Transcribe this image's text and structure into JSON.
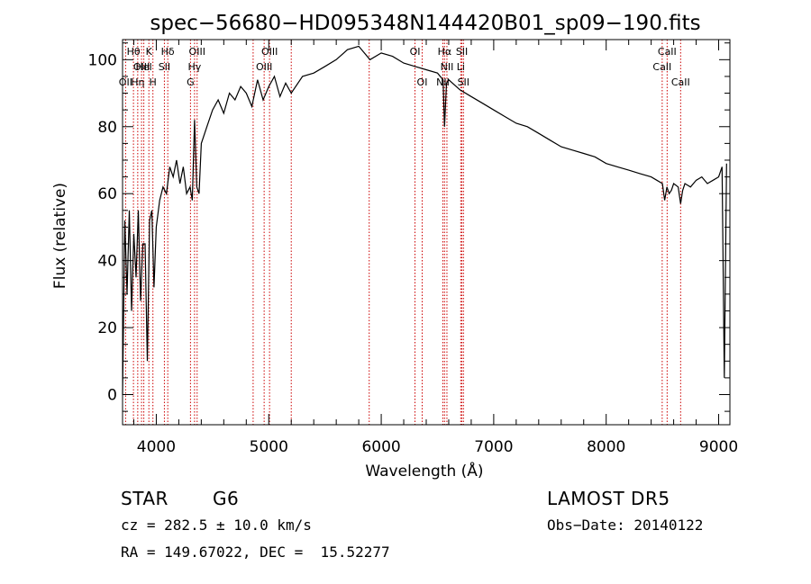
{
  "chart_data": {
    "type": "line",
    "title": "spec−56680−HD095348N144420B01_sp09−190.fits",
    "xlabel": "Wavelength (Å)",
    "ylabel": "Flux (relative)",
    "xlim": [
      3700,
      9100
    ],
    "ylim": [
      -9,
      106
    ],
    "xticks": [
      4000,
      5000,
      6000,
      7000,
      8000,
      9000
    ],
    "yticks": [
      0,
      20,
      40,
      60,
      80,
      100
    ],
    "grid": false,
    "line_color": "#000000",
    "marker_color": "#cc0000",
    "series": [
      {
        "x": [
          3700,
          3720,
          3740,
          3760,
          3780,
          3800,
          3820,
          3840,
          3860,
          3880,
          3900,
          3920,
          3940,
          3960,
          3980,
          4000,
          4030,
          4060,
          4090,
          4120,
          4150,
          4180,
          4210,
          4240,
          4270,
          4300,
          4320,
          4340,
          4360,
          4380,
          4400,
          4450,
          4500,
          4550,
          4600,
          4650,
          4700,
          4750,
          4800,
          4850,
          4900,
          4950,
          5000,
          5050,
          5100,
          5150,
          5200,
          5300,
          5400,
          5500,
          5600,
          5700,
          5800,
          5900,
          6000,
          6100,
          6200,
          6300,
          6400,
          6500,
          6550,
          6563,
          6580,
          6600,
          6700,
          6800,
          6900,
          7000,
          7100,
          7200,
          7300,
          7400,
          7500,
          7600,
          7700,
          7800,
          7900,
          8000,
          8100,
          8200,
          8300,
          8400,
          8450,
          8500,
          8520,
          8540,
          8560,
          8580,
          8600,
          8640,
          8662,
          8680,
          8700,
          8750,
          8800,
          8850,
          8900,
          8950,
          9000,
          9030,
          9050,
          9070
        ],
        "y": [
          0,
          52,
          30,
          55,
          25,
          48,
          35,
          55,
          28,
          45,
          45,
          10,
          52,
          55,
          32,
          50,
          58,
          62,
          60,
          68,
          65,
          70,
          63,
          68,
          60,
          62,
          58,
          82,
          62,
          60,
          75,
          80,
          85,
          88,
          84,
          90,
          88,
          92,
          90,
          86,
          94,
          88,
          92,
          95,
          89,
          93,
          90,
          95,
          96,
          98,
          100,
          103,
          104,
          100,
          102,
          101,
          99,
          98,
          97,
          96,
          94,
          80,
          93,
          94,
          91,
          89,
          87,
          85,
          83,
          81,
          80,
          78,
          76,
          74,
          73,
          72,
          71,
          69,
          68,
          67,
          66,
          65,
          64,
          63,
          58,
          62,
          60,
          61,
          63,
          62,
          57,
          61,
          63,
          62,
          64,
          65,
          63,
          64,
          65,
          68,
          5,
          69
        ]
      }
    ],
    "line_markers": [
      {
        "x": 3727,
        "label": "OII",
        "row": 3
      },
      {
        "x": 3797,
        "label": "Hθ",
        "row": 1
      },
      {
        "x": 3835,
        "label": "Hη",
        "row": 3
      },
      {
        "x": 3869,
        "label": "OIII",
        "row": 2
      },
      {
        "x": 3889,
        "label": "HeI",
        "row": 2
      },
      {
        "x": 3934,
        "label": "K",
        "row": 1
      },
      {
        "x": 3970,
        "label": "H",
        "row": 3
      },
      {
        "x": 4072,
        "label": "SII",
        "row": 2
      },
      {
        "x": 4102,
        "label": "Hδ",
        "row": 1
      },
      {
        "x": 4304,
        "label": "G",
        "row": 3
      },
      {
        "x": 4340,
        "label": "Hγ",
        "row": 2
      },
      {
        "x": 4363,
        "label": "OIII",
        "row": 1
      },
      {
        "x": 4861,
        "label": "",
        "row": 0
      },
      {
        "x": 4959,
        "label": "OIII",
        "row": 2
      },
      {
        "x": 5007,
        "label": "OIII",
        "row": 1
      },
      {
        "x": 5200,
        "label": "",
        "row": 0
      },
      {
        "x": 5893,
        "label": "",
        "row": 0
      },
      {
        "x": 6300,
        "label": "OI",
        "row": 1
      },
      {
        "x": 6364,
        "label": "OI",
        "row": 3
      },
      {
        "x": 6548,
        "label": "NII",
        "row": 3
      },
      {
        "x": 6563,
        "label": "Hα",
        "row": 1
      },
      {
        "x": 6584,
        "label": "NII",
        "row": 2
      },
      {
        "x": 6707,
        "label": "Li",
        "row": 2
      },
      {
        "x": 6717,
        "label": "SII",
        "row": 1
      },
      {
        "x": 6731,
        "label": "SII",
        "row": 3
      },
      {
        "x": 8498,
        "label": "CaII",
        "row": 2
      },
      {
        "x": 8542,
        "label": "CaII",
        "row": 1
      },
      {
        "x": 8662,
        "label": "CaII",
        "row": 3
      }
    ]
  },
  "info": {
    "object_class": "STAR",
    "subclass": "G6",
    "survey": "LAMOST DR5",
    "redshift": "cz = 282.5 ± 10.0 km/s",
    "obs_date": "Obs−Date: 20140122",
    "coords": "RA = 149.67022, DEC =  15.52277"
  }
}
